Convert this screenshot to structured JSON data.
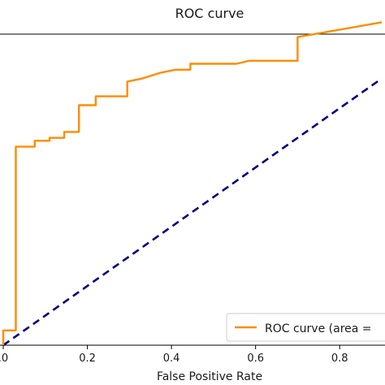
{
  "chart_data": {
    "type": "line",
    "title": "ROC curve",
    "xlabel": "False Positive Rate",
    "ylabel": "",
    "xlim": [
      0.0,
      0.9
    ],
    "ylim": [
      0.0,
      1.05
    ],
    "x_ticks": [
      0.0,
      0.2,
      0.4,
      0.6,
      0.8
    ],
    "x_tick_labels": [
      ".0",
      "0.2",
      "0.4",
      "0.6",
      "0.8"
    ],
    "grid": false,
    "legend": {
      "position": "bottom-right",
      "text": "ROC curve (area ="
    },
    "series": [
      {
        "name": "ROC curve",
        "style": "solid",
        "color": "#ff8c00",
        "x": [
          0.0,
          0.0,
          0.03,
          0.03,
          0.075,
          0.075,
          0.11,
          0.11,
          0.145,
          0.145,
          0.18,
          0.18,
          0.22,
          0.22,
          0.295,
          0.295,
          0.33,
          0.375,
          0.41,
          0.445,
          0.445,
          0.555,
          0.585,
          0.625,
          0.7,
          0.7,
          0.9
        ],
        "y": [
          0.0,
          0.05,
          0.05,
          0.67,
          0.67,
          0.69,
          0.69,
          0.7,
          0.7,
          0.72,
          0.72,
          0.81,
          0.81,
          0.84,
          0.84,
          0.89,
          0.9,
          0.92,
          0.93,
          0.93,
          0.95,
          0.95,
          0.96,
          0.96,
          0.96,
          1.04,
          1.09
        ]
      },
      {
        "style": "dashed",
        "color": "#000080",
        "x": [
          0.0,
          0.9
        ],
        "y": [
          0.0,
          0.9
        ]
      }
    ]
  }
}
